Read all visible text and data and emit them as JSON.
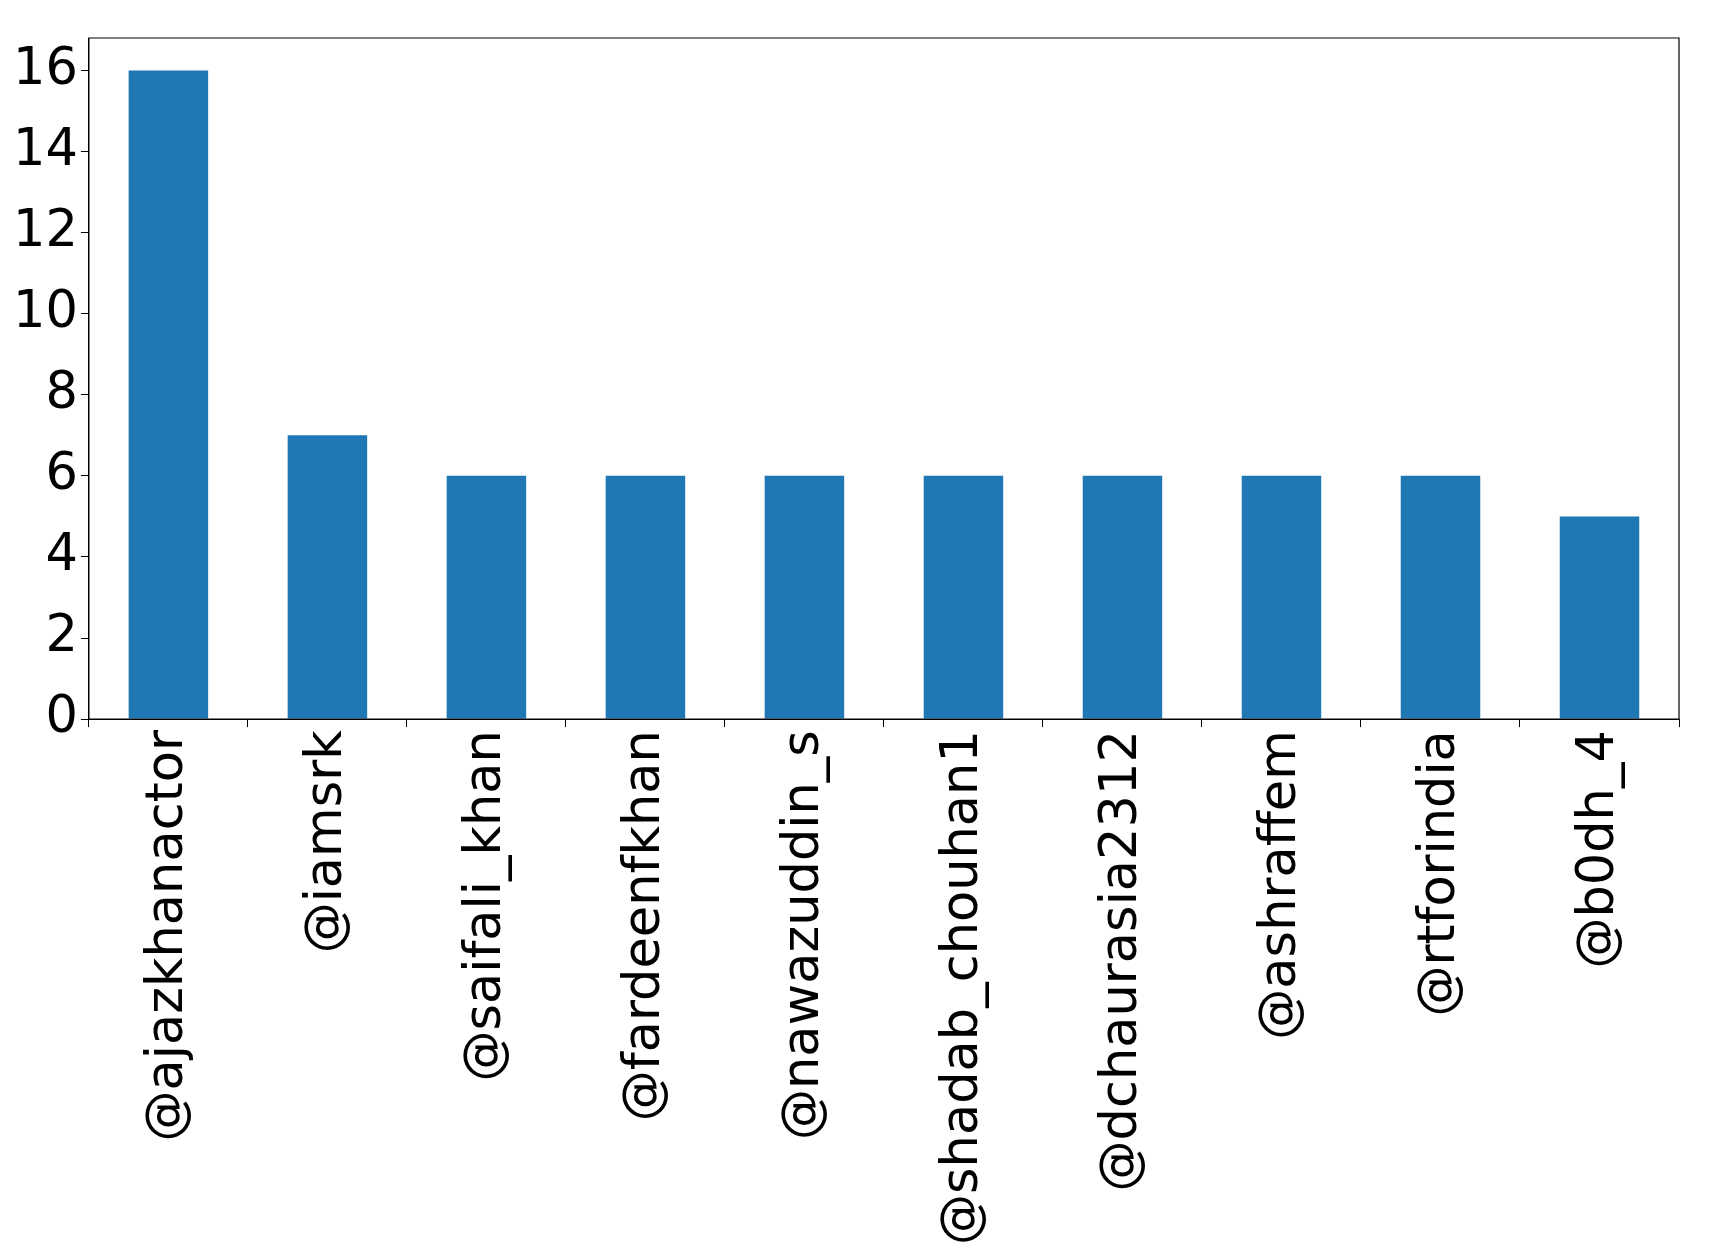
{
  "chart_data": {
    "type": "bar",
    "categories": [
      "@ajazkhanactor",
      "@iamsrk",
      "@saifali_khan",
      "@fardeenfkhan",
      "@nawazuddin_s",
      "@shadab_chouhan1",
      "@dchaurasia2312",
      "@ashraffem",
      "@rtforindia",
      "@b0dh_4"
    ],
    "values": [
      16,
      7,
      6,
      6,
      6,
      6,
      6,
      6,
      6,
      5
    ],
    "color": "#1f77b4",
    "ylim": [
      0,
      16.8
    ],
    "yticks": [
      0,
      2,
      4,
      6,
      8,
      10,
      12,
      14,
      16
    ],
    "grid": false,
    "legend": false
  }
}
